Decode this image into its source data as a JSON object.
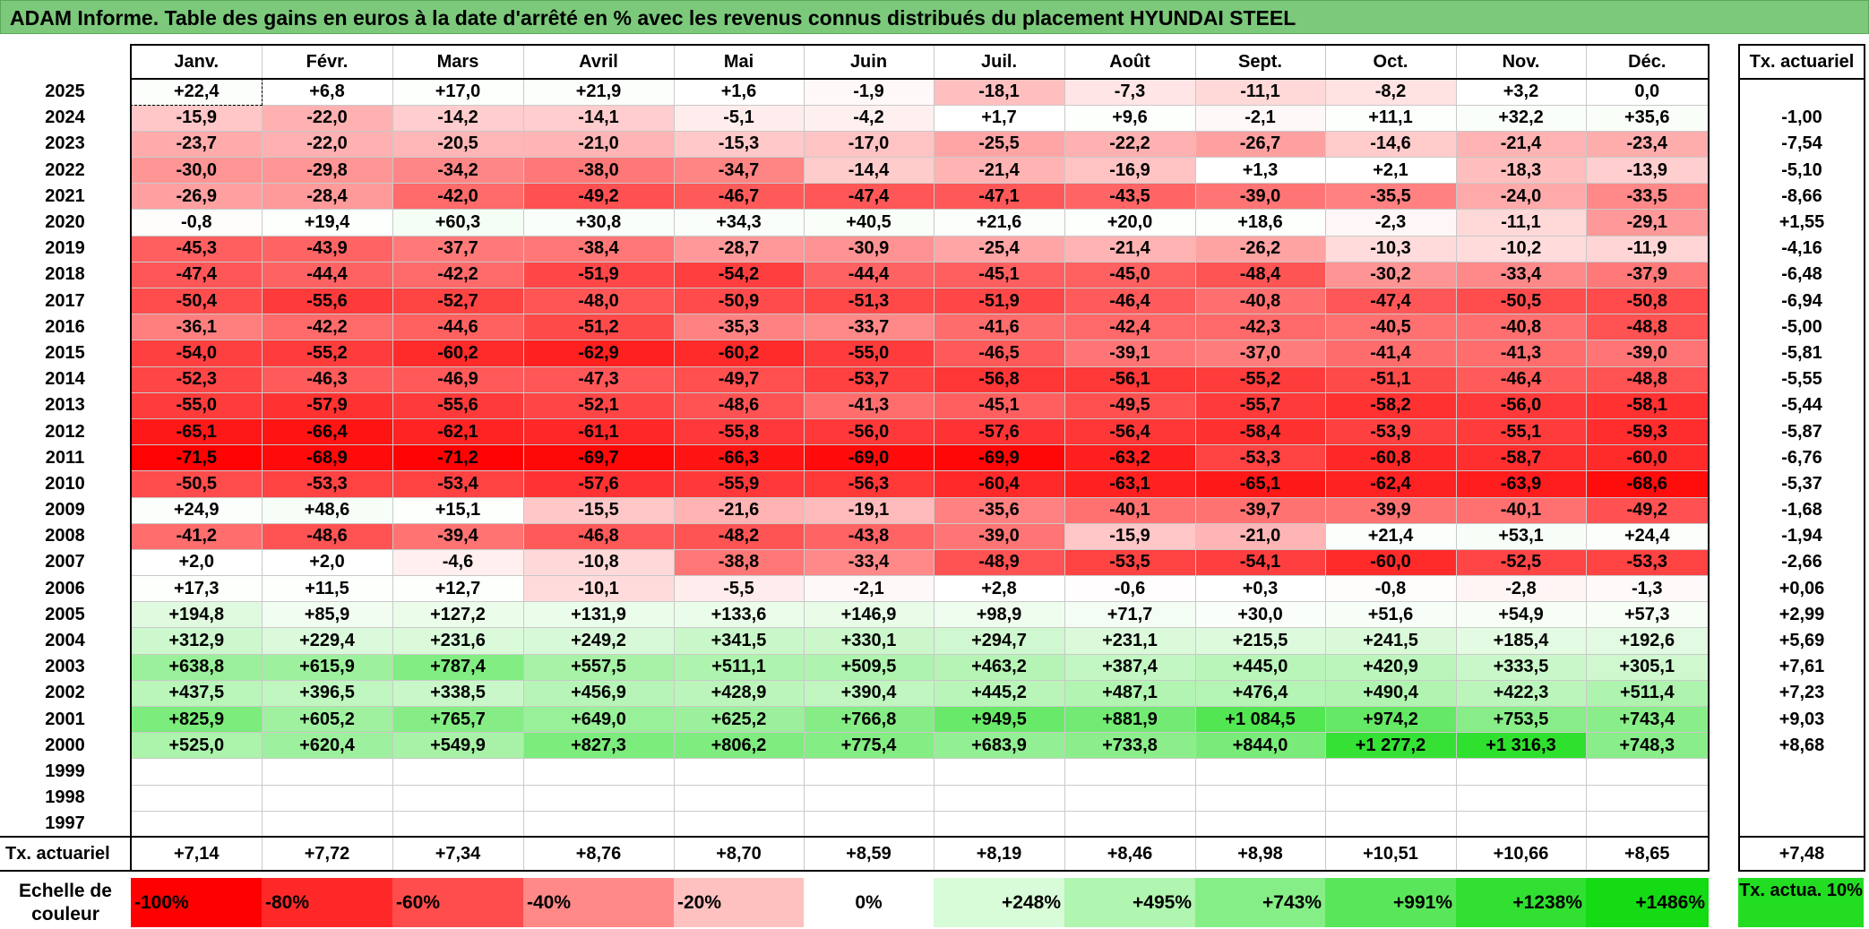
{
  "title": "ADAM Informe. Table des gains en euros à la date d'arrêté en % avec les revenus connus distribués du placement HYUNDAI STEEL",
  "months": [
    "Janv.",
    "Févr.",
    "Mars",
    "Avril",
    "Mai",
    "Juin",
    "Juil.",
    "Août",
    "Sept.",
    "Oct.",
    "Nov.",
    "Déc."
  ],
  "tx_header": "Tx. actuariel",
  "rows": [
    {
      "year": "2025",
      "values": [
        "+22,4",
        "+6,8",
        "+17,0",
        "+21,9",
        "+1,6",
        "-1,9",
        "-18,1",
        "-7,3",
        "-11,1",
        "-8,2",
        "+3,2",
        "0,0"
      ],
      "tx": ""
    },
    {
      "year": "2024",
      "values": [
        "-15,9",
        "-22,0",
        "-14,2",
        "-14,1",
        "-5,1",
        "-4,2",
        "+1,7",
        "+9,6",
        "-2,1",
        "+11,1",
        "+32,2",
        "+35,6"
      ],
      "tx": "-1,00"
    },
    {
      "year": "2023",
      "values": [
        "-23,7",
        "-22,0",
        "-20,5",
        "-21,0",
        "-15,3",
        "-17,0",
        "-25,5",
        "-22,2",
        "-26,7",
        "-14,6",
        "-21,4",
        "-23,4"
      ],
      "tx": "-7,54"
    },
    {
      "year": "2022",
      "values": [
        "-30,0",
        "-29,8",
        "-34,2",
        "-38,0",
        "-34,7",
        "-14,4",
        "-21,4",
        "-16,9",
        "+1,3",
        "+2,1",
        "-18,3",
        "-13,9"
      ],
      "tx": "-5,10"
    },
    {
      "year": "2021",
      "values": [
        "-26,9",
        "-28,4",
        "-42,0",
        "-49,2",
        "-46,7",
        "-47,4",
        "-47,1",
        "-43,5",
        "-39,0",
        "-35,5",
        "-24,0",
        "-33,5"
      ],
      "tx": "-8,66"
    },
    {
      "year": "2020",
      "values": [
        "-0,8",
        "+19,4",
        "+60,3",
        "+30,8",
        "+34,3",
        "+40,5",
        "+21,6",
        "+20,0",
        "+18,6",
        "-2,3",
        "-11,1",
        "-29,1"
      ],
      "tx": "+1,55"
    },
    {
      "year": "2019",
      "values": [
        "-45,3",
        "-43,9",
        "-37,7",
        "-38,4",
        "-28,7",
        "-30,9",
        "-25,4",
        "-21,4",
        "-26,2",
        "-10,3",
        "-10,2",
        "-11,9"
      ],
      "tx": "-4,16"
    },
    {
      "year": "2018",
      "values": [
        "-47,4",
        "-44,4",
        "-42,2",
        "-51,9",
        "-54,2",
        "-44,4",
        "-45,1",
        "-45,0",
        "-48,4",
        "-30,2",
        "-33,4",
        "-37,9"
      ],
      "tx": "-6,48"
    },
    {
      "year": "2017",
      "values": [
        "-50,4",
        "-55,6",
        "-52,7",
        "-48,0",
        "-50,9",
        "-51,3",
        "-51,9",
        "-46,4",
        "-40,8",
        "-47,4",
        "-50,5",
        "-50,8"
      ],
      "tx": "-6,94"
    },
    {
      "year": "2016",
      "values": [
        "-36,1",
        "-42,2",
        "-44,6",
        "-51,2",
        "-35,3",
        "-33,7",
        "-41,6",
        "-42,4",
        "-42,3",
        "-40,5",
        "-40,8",
        "-48,8"
      ],
      "tx": "-5,00"
    },
    {
      "year": "2015",
      "values": [
        "-54,0",
        "-55,2",
        "-60,2",
        "-62,9",
        "-60,2",
        "-55,0",
        "-46,5",
        "-39,1",
        "-37,0",
        "-41,4",
        "-41,3",
        "-39,0"
      ],
      "tx": "-5,81"
    },
    {
      "year": "2014",
      "values": [
        "-52,3",
        "-46,3",
        "-46,9",
        "-47,3",
        "-49,7",
        "-53,7",
        "-56,8",
        "-56,1",
        "-55,2",
        "-51,1",
        "-46,4",
        "-48,8"
      ],
      "tx": "-5,55"
    },
    {
      "year": "2013",
      "values": [
        "-55,0",
        "-57,9",
        "-55,6",
        "-52,1",
        "-48,6",
        "-41,3",
        "-45,1",
        "-49,5",
        "-55,7",
        "-58,2",
        "-56,0",
        "-58,1"
      ],
      "tx": "-5,44"
    },
    {
      "year": "2012",
      "values": [
        "-65,1",
        "-66,4",
        "-62,1",
        "-61,1",
        "-55,8",
        "-56,0",
        "-57,6",
        "-56,4",
        "-58,4",
        "-53,9",
        "-55,1",
        "-59,3"
      ],
      "tx": "-5,87"
    },
    {
      "year": "2011",
      "values": [
        "-71,5",
        "-68,9",
        "-71,2",
        "-69,7",
        "-66,3",
        "-69,0",
        "-69,9",
        "-63,2",
        "-53,3",
        "-60,8",
        "-58,7",
        "-60,0"
      ],
      "tx": "-6,76"
    },
    {
      "year": "2010",
      "values": [
        "-50,5",
        "-53,3",
        "-53,4",
        "-57,6",
        "-55,9",
        "-56,3",
        "-60,4",
        "-63,1",
        "-65,1",
        "-62,4",
        "-63,9",
        "-68,6"
      ],
      "tx": "-5,37"
    },
    {
      "year": "2009",
      "values": [
        "+24,9",
        "+48,6",
        "+15,1",
        "-15,5",
        "-21,6",
        "-19,1",
        "-35,6",
        "-40,1",
        "-39,7",
        "-39,9",
        "-40,1",
        "-49,2"
      ],
      "tx": "-1,68"
    },
    {
      "year": "2008",
      "values": [
        "-41,2",
        "-48,6",
        "-39,4",
        "-46,8",
        "-48,2",
        "-43,8",
        "-39,0",
        "-15,9",
        "-21,0",
        "+21,4",
        "+53,1",
        "+24,4"
      ],
      "tx": "-1,94"
    },
    {
      "year": "2007",
      "values": [
        "+2,0",
        "+2,0",
        "-4,6",
        "-10,8",
        "-38,8",
        "-33,4",
        "-48,9",
        "-53,5",
        "-54,1",
        "-60,0",
        "-52,5",
        "-53,3"
      ],
      "tx": "-2,66"
    },
    {
      "year": "2006",
      "values": [
        "+17,3",
        "+11,5",
        "+12,7",
        "-10,1",
        "-5,5",
        "-2,1",
        "+2,8",
        "-0,6",
        "+0,3",
        "-0,8",
        "-2,8",
        "-1,3"
      ],
      "tx": "+0,06"
    },
    {
      "year": "2005",
      "values": [
        "+194,8",
        "+85,9",
        "+127,2",
        "+131,9",
        "+133,6",
        "+146,9",
        "+98,9",
        "+71,7",
        "+30,0",
        "+51,6",
        "+54,9",
        "+57,3"
      ],
      "tx": "+2,99"
    },
    {
      "year": "2004",
      "values": [
        "+312,9",
        "+229,4",
        "+231,6",
        "+249,2",
        "+341,5",
        "+330,1",
        "+294,7",
        "+231,1",
        "+215,5",
        "+241,5",
        "+185,4",
        "+192,6"
      ],
      "tx": "+5,69"
    },
    {
      "year": "2003",
      "values": [
        "+638,8",
        "+615,9",
        "+787,4",
        "+557,5",
        "+511,1",
        "+509,5",
        "+463,2",
        "+387,4",
        "+445,0",
        "+420,9",
        "+333,5",
        "+305,1"
      ],
      "tx": "+7,61"
    },
    {
      "year": "2002",
      "values": [
        "+437,5",
        "+396,5",
        "+338,5",
        "+456,9",
        "+428,9",
        "+390,4",
        "+445,2",
        "+487,1",
        "+476,4",
        "+490,4",
        "+422,3",
        "+511,4"
      ],
      "tx": "+7,23"
    },
    {
      "year": "2001",
      "values": [
        "+825,9",
        "+605,2",
        "+765,7",
        "+649,0",
        "+625,2",
        "+766,8",
        "+949,5",
        "+881,9",
        "+1 084,5",
        "+974,2",
        "+753,5",
        "+743,4"
      ],
      "tx": "+9,03"
    },
    {
      "year": "2000",
      "values": [
        "+525,0",
        "+620,4",
        "+549,9",
        "+827,3",
        "+806,2",
        "+775,4",
        "+683,9",
        "+733,8",
        "+844,0",
        "+1 277,2",
        "+1 316,3",
        "+748,3"
      ],
      "tx": "+8,68"
    },
    {
      "year": "1999",
      "values": [
        "",
        "",
        "",
        "",
        "",
        "",
        "",
        "",
        "",
        "",
        "",
        ""
      ],
      "tx": ""
    },
    {
      "year": "1998",
      "values": [
        "",
        "",
        "",
        "",
        "",
        "",
        "",
        "",
        "",
        "",
        "",
        ""
      ],
      "tx": ""
    },
    {
      "year": "1997",
      "values": [
        "",
        "",
        "",
        "",
        "",
        "",
        "",
        "",
        "",
        "",
        "",
        ""
      ],
      "tx": ""
    }
  ],
  "footer": {
    "label": "Tx. actuariel",
    "values": [
      "+7,14",
      "+7,72",
      "+7,34",
      "+8,76",
      "+8,70",
      "+8,59",
      "+8,19",
      "+8,46",
      "+8,98",
      "+10,51",
      "+10,66",
      "+8,65"
    ],
    "tx": "+7,48"
  },
  "legend": {
    "label": "Echelle de couleur",
    "items": [
      "-100%",
      "-80%",
      "-60%",
      "-40%",
      "-20%",
      "0%",
      "+248%",
      "+495%",
      "+743%",
      "+991%",
      "+1238%",
      "+1486%"
    ],
    "colors": [
      "#ff0000",
      "#ff2828",
      "#ff4c4c",
      "#ff8888",
      "#ffc0c0",
      "#ffffff",
      "#d8fbd8",
      "#b0f5b0",
      "#86ee86",
      "#5ae65a",
      "#32e032",
      "#14db14"
    ],
    "tx_label": "Tx. actua. 10%"
  },
  "colors": {
    "title_bg": "#7cc97c",
    "tx_legend_bg": "#22dd22"
  }
}
